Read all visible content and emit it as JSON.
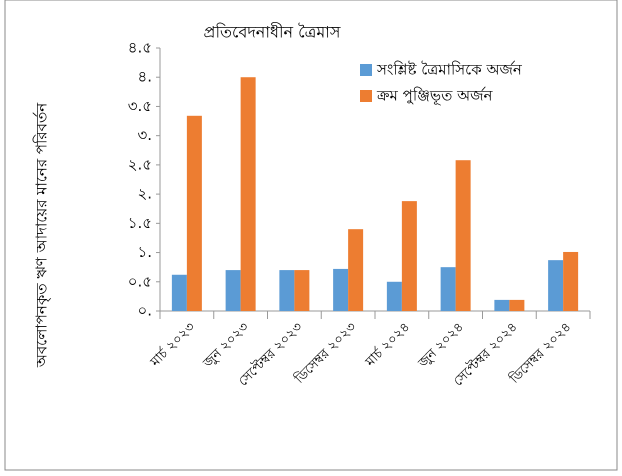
{
  "chart_data": {
    "type": "bar",
    "title": "প্রতিবেদনাধীন ত্রৈমাস",
    "y_label": "অবলোপনকৃত ঋণ আদায়ের মানের পরিবর্তন",
    "categories": [
      "মার্চ ২০২৩",
      "জুন ২০২৩",
      "সেপ্টেম্বর ২০২৩",
      "ডিসেম্বর ২০২৩",
      "মার্চ ২০২৪",
      "জুন ২০২৪",
      "সেপ্টেম্বর ২০২৪",
      "ডিসেম্বর ২০২৪"
    ],
    "series": [
      {
        "name": "সংশ্লিষ্ট ত্রৈমাসিকে অর্জন",
        "color": "#5b9bd5",
        "values": [
          0.62,
          0.7,
          0.7,
          0.72,
          0.5,
          0.75,
          0.19,
          0.87
        ]
      },
      {
        "name": "ক্রম পুঞ্জিভূত অর্জন",
        "color": "#ed7d31",
        "values": [
          3.34,
          4.0,
          0.7,
          1.4,
          1.88,
          2.58,
          0.19,
          1.01
        ]
      }
    ],
    "ylim": [
      0,
      4.5
    ],
    "yticks": [
      {
        "value": 0,
        "label": "০."
      },
      {
        "value": 0.5,
        "label": "০.৫"
      },
      {
        "value": 1,
        "label": "১."
      },
      {
        "value": 1.5,
        "label": "১.৫"
      },
      {
        "value": 2,
        "label": "২."
      },
      {
        "value": 2.5,
        "label": "২.৫"
      },
      {
        "value": 3,
        "label": "৩."
      },
      {
        "value": 3.5,
        "label": "৩.৫"
      },
      {
        "value": 4,
        "label": "৪."
      },
      {
        "value": 4.5,
        "label": "৪.৫"
      }
    ],
    "grid": false,
    "legend": "top-right"
  }
}
